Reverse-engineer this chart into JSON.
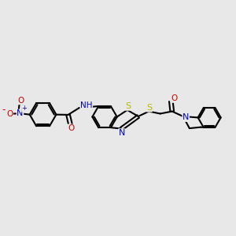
{
  "bg_color": "#e8e8e8",
  "bond_color": "#000000",
  "bond_width": 1.5,
  "atom_colors": {
    "S": "#b8b800",
    "N": "#0000cc",
    "O": "#cc0000",
    "C": "#000000"
  },
  "font_size": 7.0,
  "fig_width": 3.0,
  "fig_height": 3.0,
  "dpi": 100
}
